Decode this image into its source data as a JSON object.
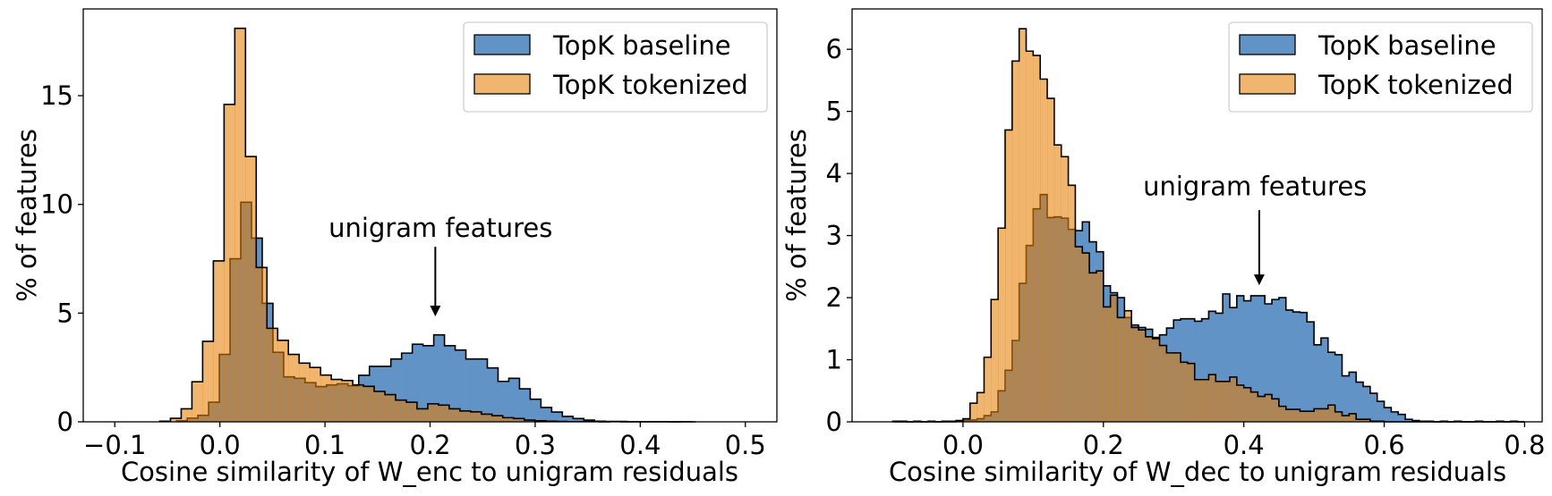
{
  "chart_data": [
    {
      "type": "histogram",
      "xlabel": "Cosine similarity of W_enc to unigram residuals",
      "ylabel": "% of features",
      "xlim": [
        -0.13,
        0.53
      ],
      "ylim": [
        0,
        18.99
      ],
      "xticks": [
        -0.1,
        0.0,
        0.1,
        0.2,
        0.3,
        0.4,
        0.5
      ],
      "xtick_labels": [
        "−0.1",
        "0.0",
        "0.1",
        "0.2",
        "0.3",
        "0.4",
        "0.5"
      ],
      "yticks": [
        0,
        5,
        10,
        15
      ],
      "ytick_labels": [
        "0",
        "5",
        "10",
        "15"
      ],
      "grid": false,
      "legend": {
        "position": "top-right",
        "entries": [
          "TopK baseline",
          "TopK tokenized"
        ]
      },
      "annotation": {
        "text": "unigram features",
        "text_x": 0.21,
        "text_y": 8.5,
        "arrow_x": 0.205,
        "arrow_from": 8.05,
        "arrow_to": 4.85
      },
      "series": [
        {
          "name": "TopK baseline",
          "color": "#6293c6",
          "opacity": 1,
          "bin_start": -0.0413,
          "bin_width": 0.0102,
          "values": [
            0.05,
            0.17,
            0.3,
            0.9,
            3.1,
            7.5,
            10.1,
            8.45,
            5.45,
            3.2,
            2.07,
            2.0,
            1.8,
            1.62,
            1.7,
            1.75,
            1.66,
            2.14,
            2.55,
            2.55,
            2.89,
            3.16,
            3.57,
            3.5,
            4.0,
            3.5,
            3.3,
            2.89,
            2.89,
            2.48,
            1.86,
            2.0,
            1.52,
            1.04,
            0.66,
            0.45,
            0.25,
            0.15,
            0.08,
            0.03,
            0.02,
            0.02,
            0.01,
            0.01,
            0.01,
            0.01,
            0,
            0.01
          ]
        },
        {
          "name": "TopK tokenized",
          "color": "#e57c02",
          "opacity": 0.57,
          "bin_start": -0.0572,
          "bin_width": 0.0102,
          "values": [
            0.03,
            0.16,
            0.6,
            1.84,
            3.7,
            7.4,
            14.6,
            18.1,
            12.2,
            7.1,
            4.3,
            3.75,
            3.1,
            2.7,
            2.5,
            2.15,
            1.95,
            1.9,
            1.7,
            1.63,
            1.4,
            1.25,
            1.0,
            0.9,
            0.6,
            0.83,
            0.77,
            0.6,
            0.5,
            0.46,
            0.35,
            0.28,
            0.19,
            0.15,
            0.08,
            0.05,
            0.03,
            0.02,
            0.01,
            0.01,
            0.01,
            0,
            0.01,
            0,
            0,
            0,
            0,
            0,
            0,
            0
          ]
        }
      ]
    },
    {
      "type": "histogram",
      "xlabel": "Cosine similarity of W_dec to unigram residuals",
      "ylabel": "% of features",
      "xlim": [
        -0.158,
        0.825
      ],
      "ylim": [
        0,
        6.65
      ],
      "xticks": [
        0.0,
        0.2,
        0.4,
        0.6,
        0.8
      ],
      "xtick_labels": [
        "0.0",
        "0.2",
        "0.4",
        "0.6",
        "0.8"
      ],
      "yticks": [
        0,
        1,
        2,
        3,
        4,
        5,
        6
      ],
      "ytick_labels": [
        "0",
        "1",
        "2",
        "3",
        "4",
        "5",
        "6"
      ],
      "grid": false,
      "legend": {
        "position": "top-right",
        "entries": [
          "TopK baseline",
          "TopK tokenized"
        ]
      },
      "annotation": {
        "text": "unigram features",
        "text_x": 0.416,
        "text_y": 3.65,
        "arrow_x": 0.422,
        "arrow_from": 3.41,
        "arrow_to": 2.2
      },
      "series": [
        {
          "name": "TopK baseline",
          "color": "#6293c6",
          "opacity": 1,
          "bin_start": -0.1,
          "bin_width": 0.01,
          "values": [
            0.01,
            0.01,
            0,
            0.01,
            0,
            0.01,
            0,
            0.01,
            0.01,
            0.02,
            0.03,
            0.03,
            0.05,
            0.1,
            0.16,
            0.5,
            0.83,
            1.31,
            2.23,
            2.84,
            3.43,
            3.66,
            3.29,
            3.3,
            3.28,
            3.1,
            3.08,
            3.22,
            2.9,
            2.74,
            2.19,
            2.08,
            2.0,
            1.68,
            1.56,
            1.52,
            1.49,
            1.36,
            1.4,
            1.51,
            1.64,
            1.66,
            1.66,
            1.62,
            1.66,
            1.78,
            1.75,
            2.06,
            1.84,
            2.03,
            1.95,
            2.03,
            2.03,
            1.9,
            1.97,
            2.0,
            1.8,
            1.77,
            1.76,
            1.61,
            1.24,
            1.35,
            1.12,
            1.08,
            0.74,
            0.8,
            0.64,
            0.57,
            0.46,
            0.33,
            0.23,
            0.16,
            0.12,
            0.04,
            0.02,
            0.01,
            0.01,
            0,
            0.01,
            0,
            0.01,
            0,
            0,
            0.01,
            0,
            0,
            0.01,
            0,
            0.01,
            0
          ]
        },
        {
          "name": "TopK tokenized",
          "color": "#e57c02",
          "opacity": 0.57,
          "bin_start": -0.1,
          "bin_width": 0.01,
          "values": [
            0,
            0,
            0,
            0,
            0,
            0,
            0,
            0,
            0,
            0.01,
            0.05,
            0.3,
            0.47,
            1.04,
            1.97,
            3.12,
            4.7,
            5.81,
            6.33,
            5.97,
            5.9,
            5.52,
            5.21,
            4.46,
            4.27,
            3.81,
            2.82,
            2.72,
            2.4,
            2.43,
            1.85,
            2.04,
            1.68,
            1.79,
            1.52,
            1.48,
            1.37,
            1.34,
            1.23,
            1.11,
            1.11,
            0.96,
            0.94,
            0.68,
            0.68,
            0.76,
            0.65,
            0.65,
            0.72,
            0.59,
            0.55,
            0.48,
            0.41,
            0.44,
            0.37,
            0.25,
            0.2,
            0.2,
            0.17,
            0.17,
            0.21,
            0.21,
            0.27,
            0.16,
            0.1,
            0.13,
            0.04,
            0.04,
            0.01,
            0.01,
            0,
            0,
            0,
            0,
            0,
            0,
            0,
            0,
            0,
            0,
            0,
            0,
            0,
            0,
            0,
            0,
            0,
            0,
            0,
            0
          ]
        }
      ]
    }
  ]
}
